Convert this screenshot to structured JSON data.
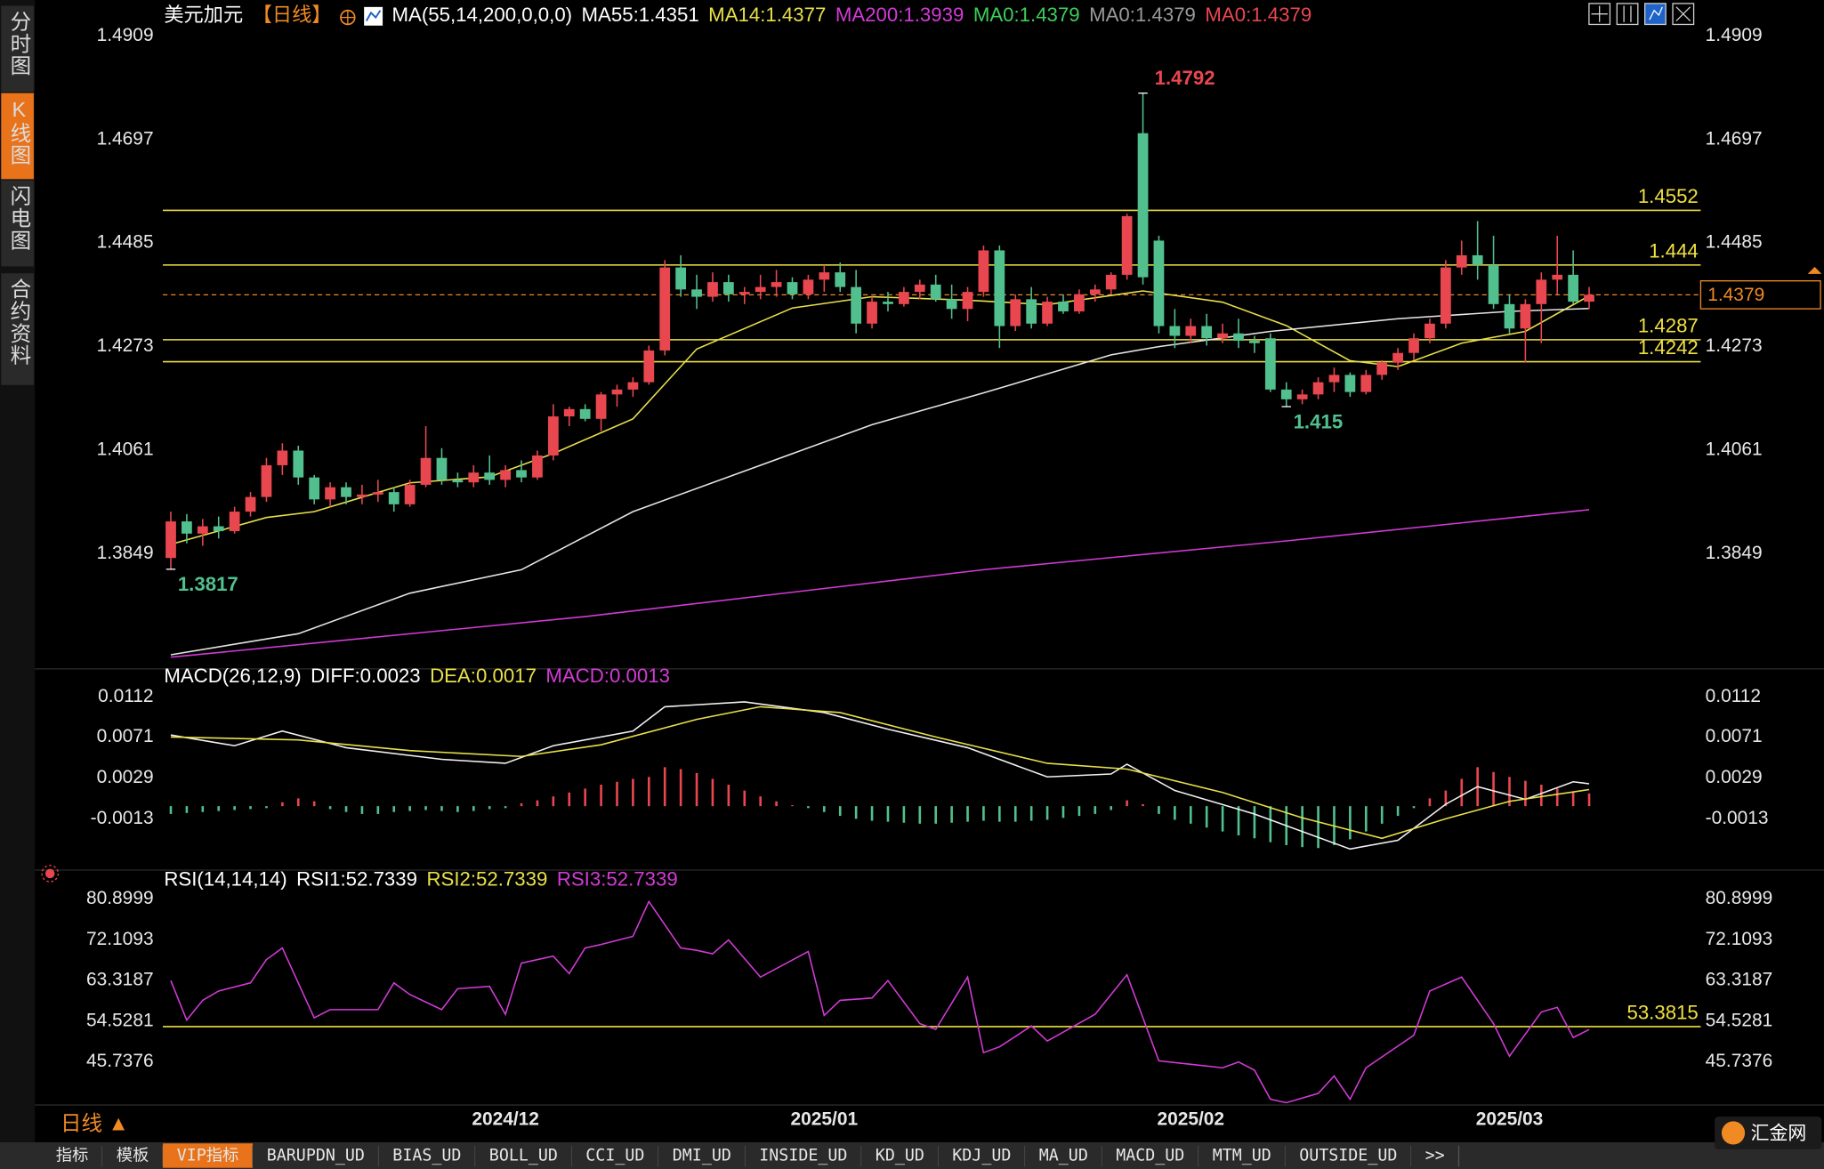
{
  "chart_data": [
    {
      "type": "candlestick",
      "header": [
        {
          "text": "美元加元",
          "color": "#ffffff"
        },
        {
          "text": "【日线】",
          "color": "#f08a24"
        },
        {
          "text": "MA(55,14,200,0,0,0)",
          "color": "#ffffff"
        },
        {
          "text": "MA55:1.4351",
          "color": "#ffffff"
        },
        {
          "text": "MA14:1.4377",
          "color": "#e8e04a"
        },
        {
          "text": "MA200:1.3939",
          "color": "#d23bd6"
        },
        {
          "text": "MA0:1.4379",
          "color": "#3ecf5a"
        },
        {
          "text": "MA0:1.4379",
          "color": "#9a9a9a"
        },
        {
          "text": "MA0:1.4379",
          "color": "#e8474f"
        }
      ],
      "xlim": [
        -0.5,
        96
      ],
      "ylim": [
        1.3625,
        1.4947
      ],
      "yticks": [
        1.4909,
        1.4697,
        1.4485,
        1.4273,
        1.4061,
        1.3849
      ],
      "xticks": [
        {
          "value": 21,
          "label": "2024/12"
        },
        {
          "value": 41,
          "label": "2025/01"
        },
        {
          "value": 64,
          "label": "2025/02"
        },
        {
          "value": 84,
          "label": "2025/03"
        }
      ],
      "up_color": "#e8474f",
      "down_color": "#52c08e",
      "candles": [
        [
          1.384,
          1.3935,
          1.3817,
          1.3915
        ],
        [
          1.3915,
          1.393,
          1.387,
          1.389
        ],
        [
          1.389,
          1.392,
          1.3865,
          1.3905
        ],
        [
          1.3905,
          1.3925,
          1.388,
          1.3895
        ],
        [
          1.3895,
          1.3945,
          1.389,
          1.3935
        ],
        [
          1.3935,
          1.3975,
          1.3925,
          1.3965
        ],
        [
          1.3965,
          1.4045,
          1.3955,
          1.403
        ],
        [
          1.403,
          1.4075,
          1.401,
          1.406
        ],
        [
          1.406,
          1.407,
          1.399,
          1.4005
        ],
        [
          1.4005,
          1.401,
          1.395,
          1.396
        ],
        [
          1.396,
          1.3995,
          1.3945,
          1.3985
        ],
        [
          1.3985,
          1.3995,
          1.395,
          1.3965
        ],
        [
          1.3965,
          1.399,
          1.395,
          1.397
        ],
        [
          1.397,
          1.4,
          1.3955,
          1.3975
        ],
        [
          1.3975,
          1.3985,
          1.3935,
          1.395
        ],
        [
          1.395,
          1.4,
          1.3945,
          1.399
        ],
        [
          1.399,
          1.411,
          1.3985,
          1.4045
        ],
        [
          1.4045,
          1.4065,
          1.399,
          1.4
        ],
        [
          1.4,
          1.4015,
          1.3985,
          1.3995
        ],
        [
          1.3995,
          1.403,
          1.3985,
          1.4015
        ],
        [
          1.4015,
          1.405,
          1.399,
          1.4
        ],
        [
          1.4,
          1.403,
          1.3985,
          1.402
        ],
        [
          1.402,
          1.404,
          1.3995,
          1.4005
        ],
        [
          1.4005,
          1.406,
          1.4,
          1.405
        ],
        [
          1.405,
          1.4155,
          1.404,
          1.413
        ],
        [
          1.413,
          1.415,
          1.411,
          1.4145
        ],
        [
          1.4145,
          1.4155,
          1.412,
          1.4125
        ],
        [
          1.4125,
          1.418,
          1.41,
          1.4175
        ],
        [
          1.4175,
          1.4195,
          1.415,
          1.4185
        ],
        [
          1.4185,
          1.421,
          1.417,
          1.42
        ],
        [
          1.42,
          1.4275,
          1.4195,
          1.4265
        ],
        [
          1.4265,
          1.445,
          1.4255,
          1.4435
        ],
        [
          1.4435,
          1.446,
          1.4375,
          1.439
        ],
        [
          1.439,
          1.442,
          1.435,
          1.4375
        ],
        [
          1.4375,
          1.4425,
          1.4365,
          1.4405
        ],
        [
          1.4405,
          1.442,
          1.4365,
          1.438
        ],
        [
          1.438,
          1.4395,
          1.436,
          1.4385
        ],
        [
          1.4385,
          1.442,
          1.437,
          1.4395
        ],
        [
          1.4395,
          1.443,
          1.4375,
          1.4405
        ],
        [
          1.4405,
          1.4415,
          1.437,
          1.438
        ],
        [
          1.438,
          1.442,
          1.437,
          1.441
        ],
        [
          1.441,
          1.444,
          1.4385,
          1.4425
        ],
        [
          1.4425,
          1.4445,
          1.4385,
          1.4395
        ],
        [
          1.4395,
          1.443,
          1.43,
          1.432
        ],
        [
          1.432,
          1.4375,
          1.431,
          1.4365
        ],
        [
          1.4365,
          1.4385,
          1.4345,
          1.436
        ],
        [
          1.436,
          1.4395,
          1.4355,
          1.4385
        ],
        [
          1.4385,
          1.441,
          1.437,
          1.44
        ],
        [
          1.44,
          1.442,
          1.4365,
          1.437
        ],
        [
          1.437,
          1.44,
          1.433,
          1.435
        ],
        [
          1.435,
          1.4395,
          1.4325,
          1.4385
        ],
        [
          1.4385,
          1.448,
          1.4375,
          1.447
        ],
        [
          1.447,
          1.448,
          1.427,
          1.4315
        ],
        [
          1.4315,
          1.438,
          1.4305,
          1.437
        ],
        [
          1.437,
          1.4395,
          1.431,
          1.432
        ],
        [
          1.432,
          1.4375,
          1.4315,
          1.4365
        ],
        [
          1.4365,
          1.438,
          1.434,
          1.4345
        ],
        [
          1.4345,
          1.439,
          1.434,
          1.438
        ],
        [
          1.438,
          1.44,
          1.4365,
          1.439
        ],
        [
          1.439,
          1.4425,
          1.438,
          1.442
        ],
        [
          1.442,
          1.4545,
          1.441,
          1.454
        ],
        [
          1.471,
          1.4792,
          1.44,
          1.4415
        ],
        [
          1.449,
          1.45,
          1.43,
          1.4315
        ],
        [
          1.4315,
          1.435,
          1.427,
          1.4295
        ],
        [
          1.4295,
          1.433,
          1.428,
          1.4315
        ],
        [
          1.4315,
          1.434,
          1.4275,
          1.429
        ],
        [
          1.429,
          1.432,
          1.428,
          1.43
        ],
        [
          1.43,
          1.433,
          1.427,
          1.4285
        ],
        [
          1.4285,
          1.4295,
          1.426,
          1.428
        ],
        [
          1.429,
          1.43,
          1.418,
          1.4185
        ],
        [
          1.4185,
          1.42,
          1.415,
          1.4165
        ],
        [
          1.4165,
          1.4185,
          1.4155,
          1.4175
        ],
        [
          1.4175,
          1.421,
          1.4165,
          1.42
        ],
        [
          1.42,
          1.423,
          1.418,
          1.4215
        ],
        [
          1.4215,
          1.422,
          1.417,
          1.418
        ],
        [
          1.418,
          1.4225,
          1.4175,
          1.4215
        ],
        [
          1.4215,
          1.4245,
          1.4205,
          1.424
        ],
        [
          1.424,
          1.427,
          1.4225,
          1.426
        ],
        [
          1.426,
          1.43,
          1.4245,
          1.429
        ],
        [
          1.429,
          1.433,
          1.428,
          1.432
        ],
        [
          1.432,
          1.445,
          1.431,
          1.4435
        ],
        [
          1.4435,
          1.449,
          1.442,
          1.446
        ],
        [
          1.446,
          1.453,
          1.441,
          1.444
        ],
        [
          1.444,
          1.45,
          1.435,
          1.436
        ],
        [
          1.436,
          1.438,
          1.43,
          1.431
        ],
        [
          1.431,
          1.437,
          1.424,
          1.436
        ],
        [
          1.436,
          1.4425,
          1.428,
          1.441
        ],
        [
          1.441,
          1.45,
          1.438,
          1.442
        ],
        [
          1.442,
          1.447,
          1.436,
          1.4365
        ],
        [
          1.4365,
          1.4395,
          1.435,
          1.4379
        ]
      ],
      "lines": [
        {
          "color": "#e8e04a",
          "x": [
            0,
            6,
            9,
            15,
            20,
            24,
            29,
            33,
            39,
            44,
            50,
            55,
            61,
            66,
            70,
            74,
            77,
            81,
            85,
            89
          ],
          "values": [
            1.3868,
            1.3923,
            1.3935,
            1.3994,
            1.4006,
            1.4054,
            1.4125,
            1.4268,
            1.4352,
            1.4375,
            1.4368,
            1.4359,
            1.4387,
            1.4364,
            1.4316,
            1.4244,
            1.4232,
            1.428,
            1.4304,
            1.4377
          ]
        },
        {
          "color": "#e6e6e6",
          "x": [
            0,
            8,
            15,
            22,
            29,
            37,
            44,
            51,
            59,
            62,
            69,
            77,
            84,
            89
          ],
          "values": [
            1.3642,
            1.3685,
            1.3768,
            1.3816,
            1.3935,
            1.403,
            1.4113,
            1.4178,
            1.4256,
            1.4273,
            1.4304,
            1.433,
            1.4345,
            1.4351
          ]
        },
        {
          "color": "#d23bd6",
          "x": [
            0,
            26,
            51,
            70,
            89
          ],
          "values": [
            1.3637,
            1.372,
            1.3816,
            1.3875,
            1.3939
          ]
        }
      ],
      "levels": {
        "values": [
          1.4552,
          1.444,
          1.4287,
          1.4242
        ],
        "color": "#f0e040"
      },
      "last_price": {
        "value": 1.4379,
        "color": "#f08a24"
      },
      "annotations": [
        {
          "index": 61,
          "value": 1.4792,
          "color": "#e8474f"
        },
        {
          "index": 70,
          "value": 1.415,
          "color": "#52c08e"
        },
        {
          "index": 0,
          "value": 1.3817,
          "color": "#52c08e"
        }
      ]
    },
    {
      "type": "macd",
      "header": [
        {
          "text": "MACD(26,12,9)",
          "color": "#ffffff"
        },
        {
          "text": "DIFF:0.0023",
          "color": "#ffffff"
        },
        {
          "text": "DEA:0.0017",
          "color": "#e8e04a"
        },
        {
          "text": "MACD:0.0013",
          "color": "#d23bd6"
        }
      ],
      "ylim": [
        -0.0062,
        0.0123
      ],
      "yticks": [
        0.0112,
        0.0071,
        0.0029,
        -0.0013
      ],
      "histogram": {
        "up_color": "#e8474f",
        "down_color": "#52c08e",
        "values": [
          -0.0008,
          -0.0007,
          -0.0006,
          -0.0005,
          -0.0004,
          -0.0003,
          -0.0002,
          0.0004,
          0.0008,
          0.0005,
          -0.0003,
          -0.0006,
          -0.0008,
          -0.0008,
          -0.0006,
          -0.0005,
          -0.0004,
          -0.0005,
          -0.0006,
          -0.0005,
          -0.0003,
          -0.0002,
          0.0003,
          0.0006,
          0.001,
          0.0014,
          0.0018,
          0.0022,
          0.0025,
          0.0028,
          0.003,
          0.004,
          0.0038,
          0.0034,
          0.0028,
          0.0022,
          0.0016,
          0.001,
          0.0005,
          0.0001,
          -0.0002,
          -0.0006,
          -0.001,
          -0.0013,
          -0.0015,
          -0.0016,
          -0.0017,
          -0.0018,
          -0.0018,
          -0.0017,
          -0.0016,
          -0.0015,
          -0.0016,
          -0.0016,
          -0.0015,
          -0.0014,
          -0.0012,
          -0.001,
          -0.0008,
          -0.0004,
          0.0006,
          0.0002,
          -0.0008,
          -0.0014,
          -0.0018,
          -0.0022,
          -0.0026,
          -0.003,
          -0.0033,
          -0.0037,
          -0.004,
          -0.0042,
          -0.0043,
          -0.004,
          -0.0034,
          -0.0026,
          -0.0018,
          -0.001,
          -0.0002,
          0.0008,
          0.0016,
          0.0028,
          0.004,
          0.0035,
          0.003,
          0.0026,
          0.0022,
          0.0018,
          0.0015,
          0.0013
        ]
      },
      "lines": [
        {
          "color": "#f2f2f2",
          "x": [
            0,
            4,
            7,
            11,
            17,
            21,
            24,
            29,
            31,
            36,
            41,
            45,
            50,
            55,
            59,
            60,
            63,
            68,
            74,
            77,
            80,
            82,
            85,
            88,
            89
          ],
          "values": [
            0.0073,
            0.0062,
            0.0077,
            0.006,
            0.0048,
            0.0044,
            0.0062,
            0.0077,
            0.0102,
            0.0107,
            0.0096,
            0.0079,
            0.006,
            0.003,
            0.0033,
            0.0043,
            0.0016,
            -0.0008,
            -0.0044,
            -0.0035,
            0.0002,
            0.002,
            0.0007,
            0.0025,
            0.0023
          ]
        },
        {
          "color": "#e8e04a",
          "x": [
            0,
            8,
            15,
            22,
            27,
            33,
            37,
            42,
            48,
            55,
            60,
            66,
            71,
            76,
            80,
            84,
            89
          ],
          "values": [
            0.0071,
            0.0068,
            0.0057,
            0.0051,
            0.0063,
            0.0089,
            0.0102,
            0.0096,
            0.0071,
            0.0044,
            0.0038,
            0.0014,
            -0.0012,
            -0.0033,
            -0.0013,
            0.0005,
            0.0017
          ]
        }
      ]
    },
    {
      "type": "rsi",
      "header": [
        {
          "text": "RSI(14,14,14)",
          "color": "#ffffff"
        },
        {
          "text": "RSI1:52.7339",
          "color": "#ffffff"
        },
        {
          "text": "RSI2:52.7339",
          "color": "#e8e04a"
        },
        {
          "text": "RSI3:52.7339",
          "color": "#d23bd6"
        }
      ],
      "ylim": [
        36.44,
        82.91
      ],
      "yticks": [
        80.8999,
        72.1093,
        63.3187,
        54.5281,
        45.7376
      ],
      "levels": {
        "values": [
          53.3815
        ],
        "color": "#f0e040"
      },
      "lines": [
        {
          "color": "#d23bd6",
          "x": [
            0,
            1,
            2,
            3,
            5,
            6,
            7,
            9,
            10,
            13,
            14,
            15,
            17,
            18,
            20,
            21,
            22,
            24,
            25,
            26,
            27,
            29,
            30,
            32,
            33,
            34,
            35,
            37,
            40,
            41,
            42,
            44,
            45,
            47,
            48,
            50,
            51,
            52,
            54,
            55,
            58,
            60,
            62,
            64,
            66,
            67,
            68,
            69,
            70,
            72,
            73,
            74,
            75,
            78,
            79,
            81,
            83,
            84,
            86,
            87,
            88,
            89
          ],
          "values": [
            63.32,
            54.78,
            59.05,
            61.06,
            62.82,
            67.84,
            70.35,
            55.28,
            57.04,
            57.04,
            62.82,
            60.31,
            57.04,
            61.56,
            62.06,
            56.03,
            67.08,
            68.59,
            64.83,
            70.35,
            71.1,
            72.86,
            80.4,
            70.35,
            69.85,
            69.1,
            72.11,
            64.07,
            69.6,
            55.78,
            59.05,
            59.55,
            63.32,
            54.03,
            52.77,
            64.07,
            47.75,
            49.0,
            53.52,
            50.26,
            56.03,
            64.57,
            45.99,
            45.24,
            44.48,
            45.74,
            43.98,
            37.7,
            36.95,
            38.96,
            42.72,
            37.7,
            44.48,
            51.51,
            61.06,
            64.07,
            54.03,
            46.99,
            56.54,
            57.54,
            51.01,
            52.7339
          ]
        }
      ]
    }
  ],
  "sidebar_tabs": [
    "分时图",
    "K线图",
    "闪电图",
    "合约资料"
  ],
  "active_sidebar_tab": 1,
  "period_label": "日线 ▲",
  "bottom_tabs": [
    "指标",
    "模板",
    "VIP指标",
    "BARUPDN_UD",
    "BIAS_UD",
    "BOLL_UD",
    "CCI_UD",
    "DMI_UD",
    "INSIDE_UD",
    "KD_UD",
    "KDJ_UD",
    "MA_UD",
    "MACD_UD",
    "MTM_UD",
    "OUTSIDE_UD",
    ">>"
  ],
  "active_bottom_tab": 2,
  "logo": "汇金网"
}
